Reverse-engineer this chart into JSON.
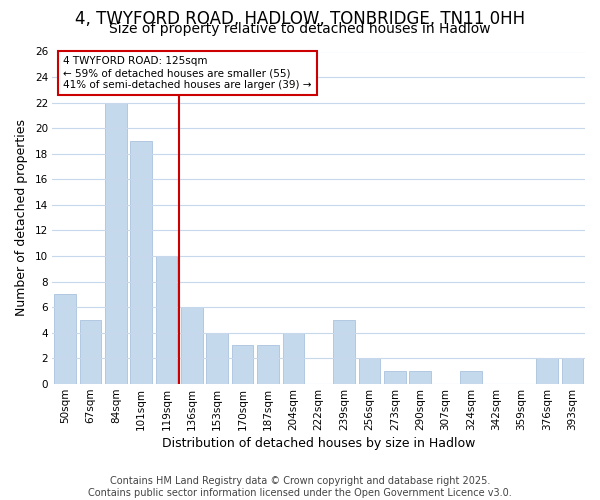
{
  "title1": "4, TWYFORD ROAD, HADLOW, TONBRIDGE, TN11 0HH",
  "title2": "Size of property relative to detached houses in Hadlow",
  "xlabel": "Distribution of detached houses by size in Hadlow",
  "ylabel": "Number of detached properties",
  "categories": [
    "50sqm",
    "67sqm",
    "84sqm",
    "101sqm",
    "119sqm",
    "136sqm",
    "153sqm",
    "170sqm",
    "187sqm",
    "204sqm",
    "222sqm",
    "239sqm",
    "256sqm",
    "273sqm",
    "290sqm",
    "307sqm",
    "324sqm",
    "342sqm",
    "359sqm",
    "376sqm",
    "393sqm"
  ],
  "values": [
    7,
    5,
    22,
    19,
    10,
    6,
    4,
    3,
    3,
    4,
    0,
    5,
    2,
    1,
    1,
    0,
    1,
    0,
    0,
    2,
    2
  ],
  "bar_color": "#c5d9ed",
  "bar_edge_color": "#aac3de",
  "vline_x": 4.5,
  "vline_color": "#cc0000",
  "annotation_text": "4 TWYFORD ROAD: 125sqm\n← 59% of detached houses are smaller (55)\n41% of semi-detached houses are larger (39) →",
  "annotation_box_facecolor": "#ffffff",
  "annotation_box_edgecolor": "#cc0000",
  "ylim": [
    0,
    26
  ],
  "yticks": [
    0,
    2,
    4,
    6,
    8,
    10,
    12,
    14,
    16,
    18,
    20,
    22,
    24,
    26
  ],
  "footer1": "Contains HM Land Registry data © Crown copyright and database right 2025.",
  "footer2": "Contains public sector information licensed under the Open Government Licence v3.0.",
  "background_color": "#ffffff",
  "plot_bg_color": "#ffffff",
  "grid_color": "#c8d8ec",
  "title_fontsize": 12,
  "subtitle_fontsize": 10,
  "axis_label_fontsize": 9,
  "tick_fontsize": 7.5,
  "annotation_fontsize": 7.5,
  "footer_fontsize": 7
}
